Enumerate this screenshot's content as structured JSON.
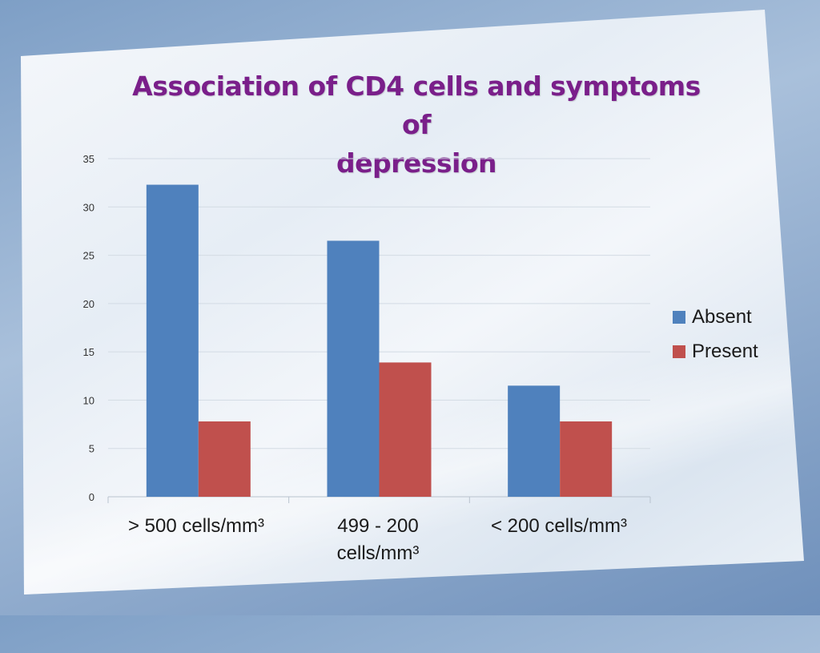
{
  "chart_data": {
    "type": "bar",
    "title_lines": [
      "Association of CD4 cells and symptoms of",
      "depression"
    ],
    "categories": [
      "> 500 cells/mm³",
      "499 - 200 cells/mm³",
      "< 200 cells/mm³"
    ],
    "category_lines": [
      [
        "> 500 cells/mm³"
      ],
      [
        "499 - 200",
        "cells/mm³"
      ],
      [
        "< 200 cells/mm³"
      ]
    ],
    "series": [
      {
        "name": "Absent",
        "color": "#4f81bd",
        "values": [
          32.3,
          26.5,
          11.5
        ]
      },
      {
        "name": "Present",
        "color": "#c0504d",
        "values": [
          7.8,
          13.9,
          7.8
        ]
      }
    ],
    "ylim": [
      0,
      35
    ],
    "yticks": [
      0,
      5,
      10,
      15,
      20,
      25,
      30,
      35
    ],
    "grid": true,
    "legend": "right",
    "xlabel": "",
    "ylabel": ""
  }
}
